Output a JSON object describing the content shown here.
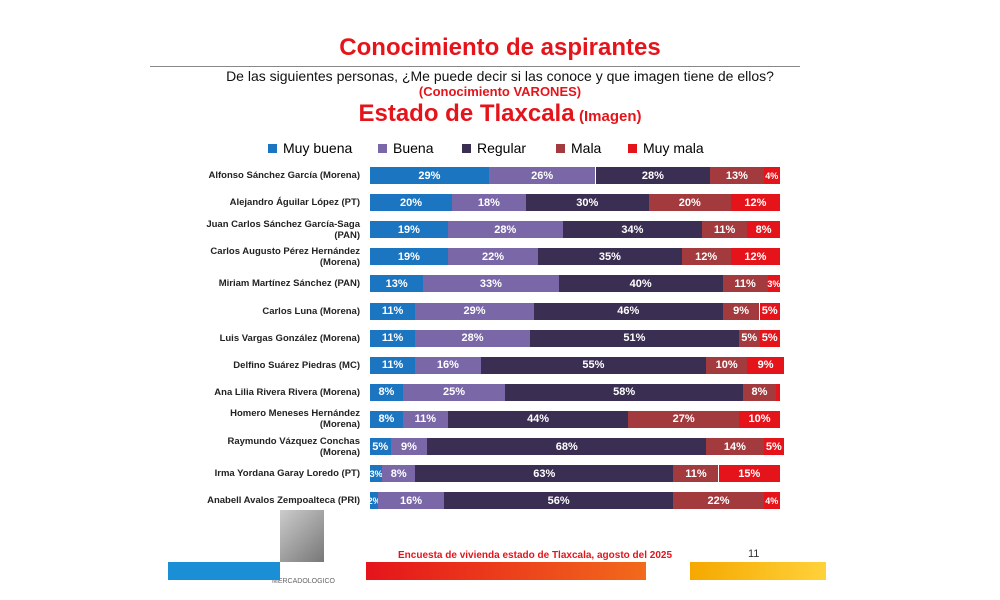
{
  "chart_data": {
    "type": "stacked-bar-horizontal",
    "title": "Conocimiento de aspirantes",
    "subtitle": "De las siguientes personas, ¿Me puede decir si las conoce y que imagen tiene de ellos?",
    "subtitle2": "(Conocimiento VARONES)",
    "heading": "Estado de Tlaxcala",
    "heading_note": "(Imagen)",
    "footer": "Encuesta de vivienda estado de Tlaxcala, agosto del 2025",
    "page_number": "11",
    "logo_text": "MERCADOLOGICO",
    "categories": [
      "Alfonso Sánchez García (Morena)",
      "Alejandro Águilar López (PT)",
      "Juan Carlos Sánchez García-Saga (PAN)",
      "Carlos Augusto Pérez Hernández (Morena)",
      "Miriam Martínez Sánchez (PAN)",
      "Carlos Luna (Morena)",
      "Luis Vargas González (Morena)",
      "Delfino Suárez Piedras (MC)",
      "Ana Lilia Rivera Rivera (Morena)",
      "Homero Meneses Hernández (Morena)",
      "Raymundo Vázquez Conchas (Morena)",
      "Irma Yordana Garay Loredo (PT)",
      "Anabell Avalos Zempoalteca (PRI)"
    ],
    "series": [
      {
        "name": "Muy buena",
        "color": "#1b75c0",
        "values": [
          29,
          20,
          19,
          19,
          13,
          11,
          11,
          11,
          8,
          8,
          5,
          3,
          2
        ],
        "value_labels": [
          "29%",
          "20%",
          "19%",
          "19%",
          "13%",
          "11%",
          "11%",
          "11%",
          "8%",
          "8%",
          "5%",
          "3%",
          "2%"
        ]
      },
      {
        "name": "Buena",
        "color": "#7a67a8",
        "values": [
          26,
          18,
          28,
          22,
          33,
          29,
          28,
          16,
          25,
          11,
          9,
          8,
          16
        ],
        "value_labels": [
          "26%",
          "18%",
          "28%",
          "22%",
          "33%",
          "29%",
          "28%",
          "16%",
          "25%",
          "11%",
          "9%",
          "8%",
          "16%"
        ]
      },
      {
        "name": "Regular",
        "color": "#3a2e52",
        "values": [
          28,
          30,
          34,
          35,
          40,
          46,
          51,
          55,
          58,
          44,
          68,
          63,
          56
        ],
        "value_labels": [
          "28%",
          "30%",
          "34%",
          "35%",
          "40%",
          "46%",
          "51%",
          "55%",
          "58%",
          "44%",
          "68%",
          "63%",
          "56%"
        ]
      },
      {
        "name": "Mala",
        "color": "#a23a3e",
        "values": [
          13,
          20,
          11,
          12,
          11,
          9,
          5,
          10,
          8,
          27,
          14,
          11,
          22
        ],
        "value_labels": [
          "13%",
          "20%",
          "11%",
          "12%",
          "11%",
          "9%",
          "5%",
          "10%",
          "8%",
          "27%",
          "14%",
          "11%",
          "22%"
        ]
      },
      {
        "name": "Muy mala",
        "color": "#e5141b",
        "values": [
          4,
          12,
          8,
          12,
          3,
          5,
          5,
          9,
          1,
          10,
          5,
          15,
          4
        ],
        "value_labels": [
          "4%",
          "12%",
          "8%",
          "12%",
          "3%",
          "5%",
          "5%",
          "9%",
          null,
          "10%",
          "5%",
          "15%",
          "4%"
        ]
      }
    ]
  }
}
